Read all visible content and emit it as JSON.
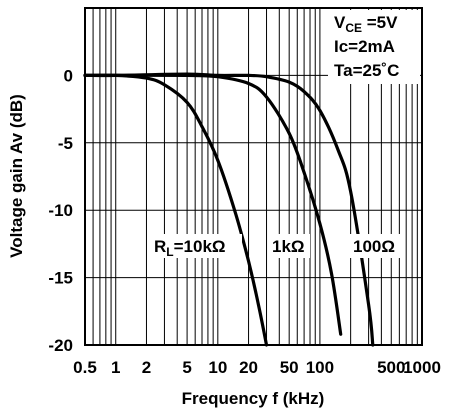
{
  "chart_data": {
    "type": "line",
    "xscale": "log",
    "xlim": [
      0.5,
      1000
    ],
    "ylim": [
      -20,
      5
    ],
    "grid": true,
    "xlabel": "Frequency f (kHz)",
    "ylabel": "Voltage gain Av (dB)",
    "x_ticks": [
      0.5,
      1,
      2,
      5,
      10,
      20,
      50,
      100,
      500,
      1000
    ],
    "x_tick_labels": [
      "0.5",
      "1",
      "2",
      "5",
      "10",
      "20",
      "50",
      "100",
      "500",
      "1000"
    ],
    "y_ticks": [
      0,
      -5,
      -10,
      -15,
      -20
    ],
    "y_tick_labels": [
      "0",
      "-5",
      "-10",
      "-15",
      "-20"
    ],
    "conditions": {
      "vce": {
        "pre": "V",
        "sub": "CE",
        "post": " =5V"
      },
      "ic": "Ic=2mA",
      "ta": "Ta=25˚C"
    },
    "series": [
      {
        "name": "RL=10kΩ",
        "label_parts": {
          "pre": "R",
          "sub": "L",
          "post": "=10kΩ"
        },
        "x": [
          0.5,
          1,
          2,
          3,
          5,
          7,
          10,
          15,
          20,
          25,
          30
        ],
        "y": [
          0,
          0,
          -0.2,
          -0.7,
          -2.0,
          -3.8,
          -6.3,
          -10.3,
          -13.8,
          -17.0,
          -20.0
        ]
      },
      {
        "name": "1kΩ",
        "label_parts": {
          "pre": "1kΩ",
          "sub": "",
          "post": ""
        },
        "x": [
          0.5,
          1,
          5,
          10,
          20,
          30,
          50,
          70,
          100,
          130,
          160
        ],
        "y": [
          0,
          0,
          0,
          -0.1,
          -0.6,
          -1.6,
          -4.3,
          -7.2,
          -11.0,
          -14.7,
          -19.2
        ]
      },
      {
        "name": "100Ω",
        "label_parts": {
          "pre": "100Ω",
          "sub": "",
          "post": ""
        },
        "x": [
          0.5,
          1,
          5,
          10,
          20,
          30,
          50,
          70,
          100,
          150,
          200,
          300,
          330
        ],
        "y": [
          0,
          0,
          0.1,
          0,
          0,
          -0.1,
          -0.5,
          -1.2,
          -2.6,
          -5.5,
          -8.6,
          -17.0,
          -20.0
        ]
      }
    ]
  }
}
